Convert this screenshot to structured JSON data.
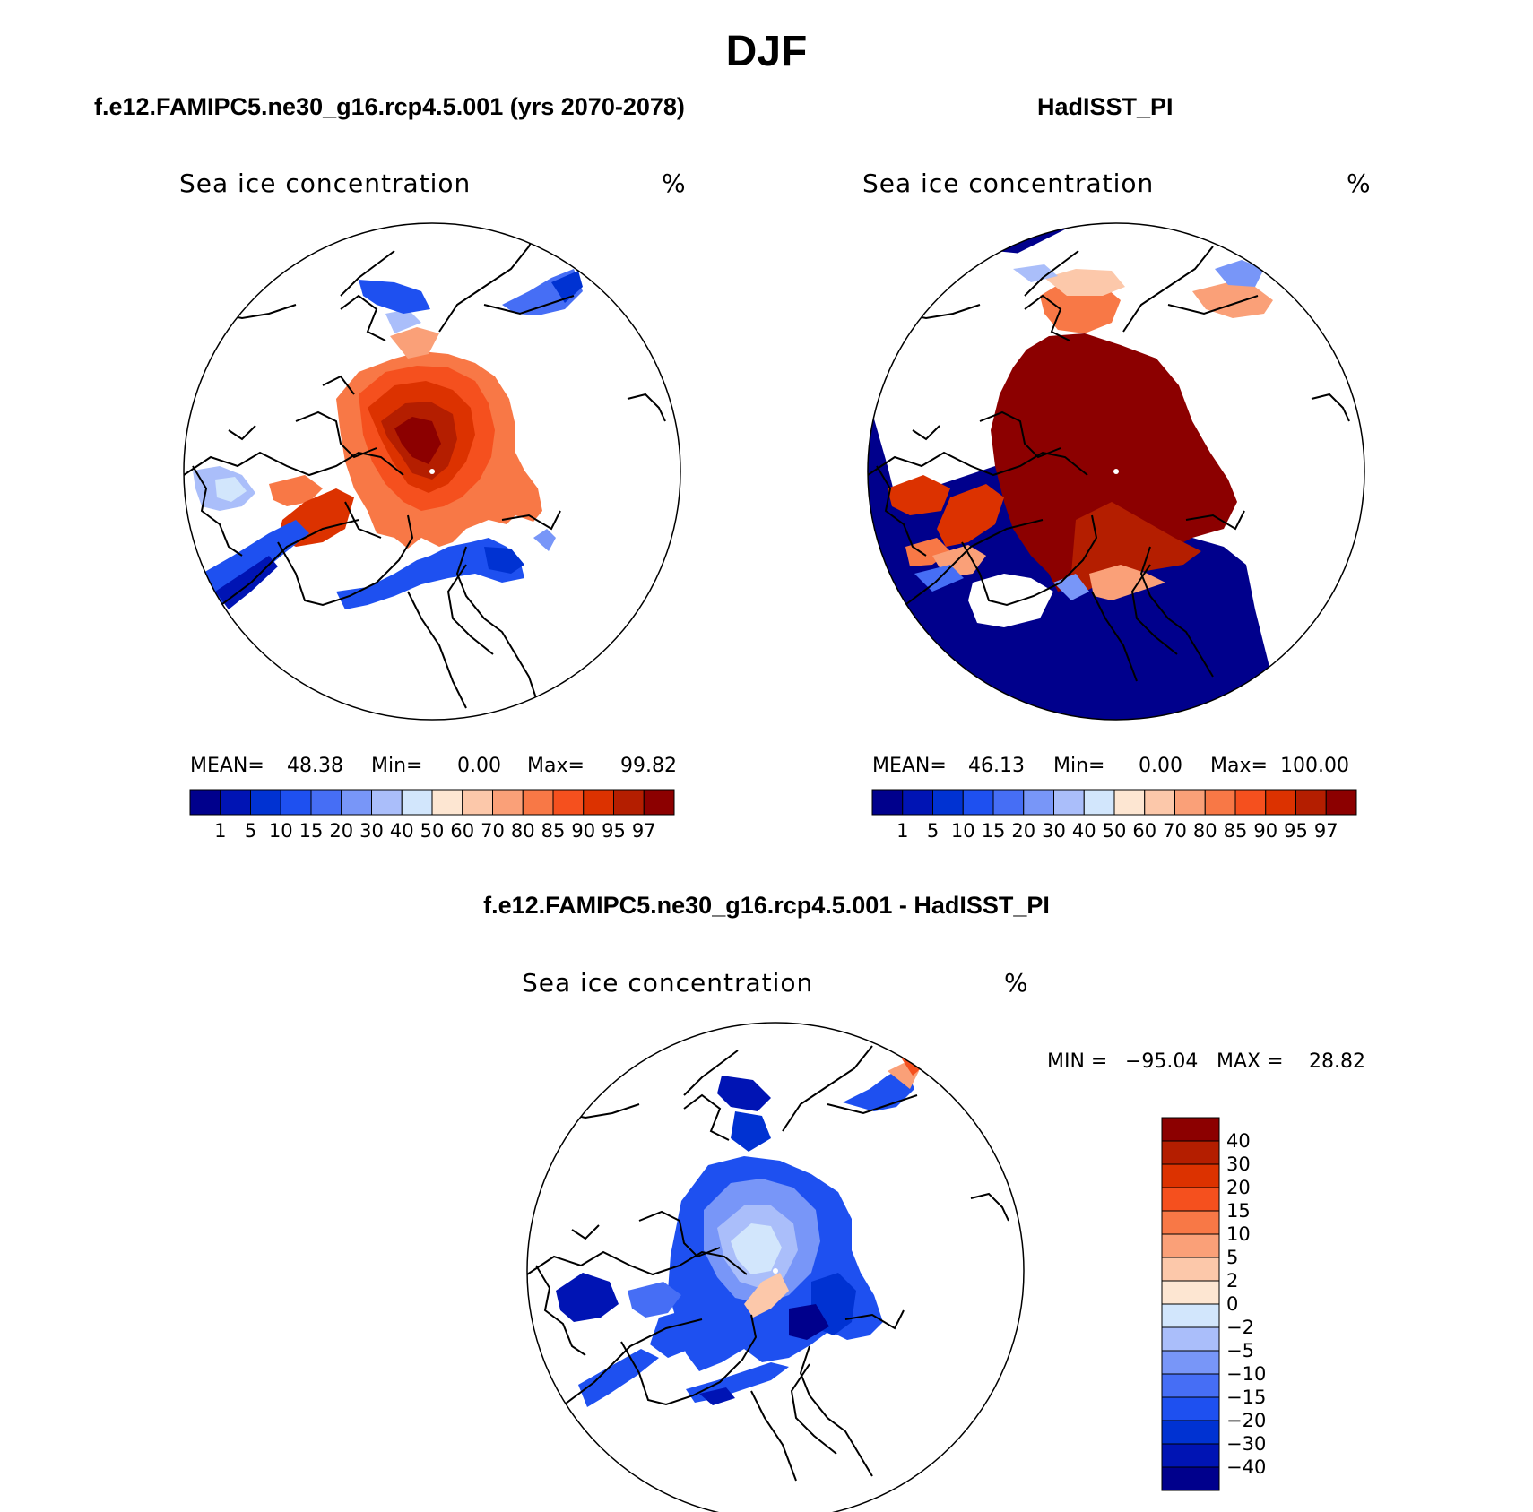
{
  "figure": {
    "title": "DJF"
  },
  "panels": [
    {
      "title": "f.e12.FAMIPC5.ne30_g16.rcp4.5.001 (yrs 2070-2078)",
      "variable": "Sea ice concentration",
      "units": "%",
      "stats": {
        "mean_label": "MEAN=",
        "mean": "48.38",
        "min_label": "Min=",
        "min": "0.00",
        "max_label": "Max=",
        "max": "99.82"
      }
    },
    {
      "title": "HadISST_PI",
      "variable": "Sea ice concentration",
      "units": "%",
      "stats": {
        "mean_label": "MEAN=",
        "mean": "46.13",
        "min_label": "Min=",
        "min": "0.00",
        "max_label": "Max=",
        "max": "100.00"
      }
    },
    {
      "title": "f.e12.FAMIPC5.ne30_g16.rcp4.5.001 - HadISST_PI",
      "variable": "Sea ice concentration",
      "units": "%",
      "stats": {
        "min_label": "MIN =",
        "min": "−95.04",
        "max_label": "MAX =",
        "max": "28.82"
      }
    }
  ],
  "colorbars": {
    "absolute": {
      "ticks": [
        "1",
        "5",
        "10",
        "15",
        "20",
        "30",
        "40",
        "50",
        "60",
        "70",
        "80",
        "85",
        "90",
        "95",
        "97"
      ],
      "colors": [
        "#00008c",
        "#0014b4",
        "#0032d2",
        "#1e50f0",
        "#466ef5",
        "#7896f8",
        "#aabefa",
        "#d2e6fc",
        "#fde6d2",
        "#fcc8aa",
        "#faa078",
        "#f87846",
        "#f5501e",
        "#dc3200",
        "#b41e00",
        "#8c0000"
      ]
    },
    "difference": {
      "ticks": [
        "40",
        "30",
        "20",
        "15",
        "10",
        "5",
        "2",
        "0",
        "−2",
        "−5",
        "−10",
        "−15",
        "−20",
        "−30",
        "−40"
      ],
      "colors": [
        "#8c0000",
        "#b41e00",
        "#dc3200",
        "#f5501e",
        "#f87846",
        "#faa078",
        "#fcc8aa",
        "#fde6d2",
        "#d2e6fc",
        "#aabefa",
        "#7896f8",
        "#466ef5",
        "#1e50f0",
        "#0032d2",
        "#0014b4",
        "#00008c"
      ]
    }
  }
}
